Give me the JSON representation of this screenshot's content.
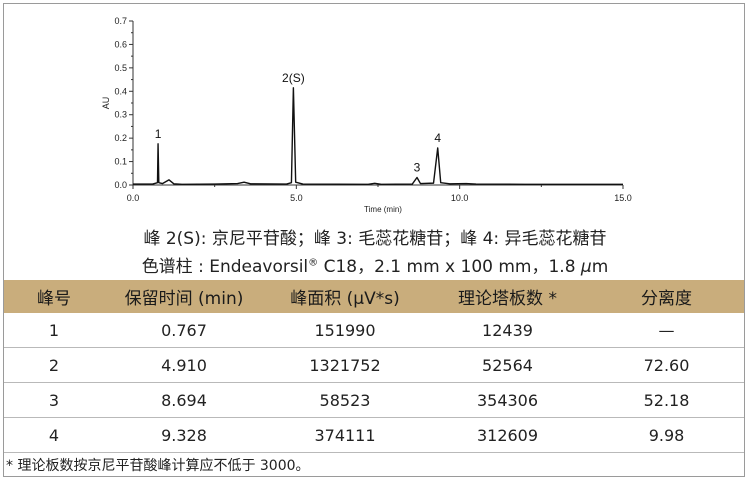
{
  "chart_data": {
    "type": "line",
    "ylabel": "AU",
    "xlabel": "Time (min)",
    "xlim": [
      0,
      15
    ],
    "ylim": [
      0,
      0.7
    ],
    "x_ticks": [
      "0.0",
      "5.0",
      "10.0",
      "15.0"
    ],
    "y_ticks": [
      "0.0",
      "0.1",
      "0.2",
      "0.3",
      "0.4",
      "0.5",
      "0.6",
      "0.7"
    ],
    "series": [
      {
        "values": [
          {
            "x": 0.0,
            "y": 0.004
          },
          {
            "x": 0.6,
            "y": 0.004
          },
          {
            "x": 0.75,
            "y": 0.01
          },
          {
            "x": 0.767,
            "y": 0.176
          },
          {
            "x": 0.79,
            "y": 0.01
          },
          {
            "x": 0.9,
            "y": 0.006
          },
          {
            "x": 1.1,
            "y": 0.022
          },
          {
            "x": 1.25,
            "y": 0.005
          },
          {
            "x": 1.5,
            "y": 0.003
          },
          {
            "x": 2.5,
            "y": 0.004
          },
          {
            "x": 3.2,
            "y": 0.006
          },
          {
            "x": 3.4,
            "y": 0.012
          },
          {
            "x": 3.6,
            "y": 0.005
          },
          {
            "x": 4.7,
            "y": 0.004
          },
          {
            "x": 4.85,
            "y": 0.01
          },
          {
            "x": 4.91,
            "y": 0.415
          },
          {
            "x": 4.98,
            "y": 0.012
          },
          {
            "x": 5.2,
            "y": 0.004
          },
          {
            "x": 7.2,
            "y": 0.003
          },
          {
            "x": 7.4,
            "y": 0.007
          },
          {
            "x": 7.6,
            "y": 0.003
          },
          {
            "x": 8.55,
            "y": 0.004
          },
          {
            "x": 8.694,
            "y": 0.032
          },
          {
            "x": 8.8,
            "y": 0.006
          },
          {
            "x": 9.2,
            "y": 0.008
          },
          {
            "x": 9.328,
            "y": 0.158
          },
          {
            "x": 9.42,
            "y": 0.01
          },
          {
            "x": 9.7,
            "y": 0.005
          },
          {
            "x": 10.2,
            "y": 0.006
          },
          {
            "x": 10.5,
            "y": 0.004
          },
          {
            "x": 12.0,
            "y": 0.003
          },
          {
            "x": 15.0,
            "y": 0.003
          }
        ]
      }
    ],
    "peak_labels": [
      {
        "label": "1",
        "x": 0.767,
        "y": 0.176
      },
      {
        "label": "2(S)",
        "x": 4.91,
        "y": 0.415
      },
      {
        "label": "3",
        "x": 8.694,
        "y": 0.032
      },
      {
        "label": "4",
        "x": 9.328,
        "y": 0.158
      }
    ]
  },
  "caption": {
    "line1": "峰 2(S): 京尼平苷酸；峰 3: 毛蕊花糖苷；峰 4: 异毛蕊花糖苷",
    "line2_prefix": "色谱柱 : Endeavorsil",
    "line2_sup": "®",
    "line2_mid": " C18，2.1 mm x 100 mm，1.8 ",
    "line2_mu": "μ",
    "line2_unit": "m"
  },
  "table": {
    "headers": [
      "峰号",
      "保留时间 (min)",
      "峰面积 (μV*s)",
      "理论塔板数 *",
      "分离度"
    ],
    "rows": [
      [
        "1",
        "0.767",
        "151990",
        "12439",
        "—"
      ],
      [
        "2",
        "4.910",
        "1321752",
        "52564",
        "72.60"
      ],
      [
        "3",
        "8.694",
        "58523",
        "354306",
        "52.18"
      ],
      [
        "4",
        "9.328",
        "374111",
        "312609",
        "9.98"
      ]
    ]
  },
  "footnote": "* 理论板数按京尼平苷酸峰计算应不低于 3000。",
  "colors": {
    "header_bg": "#c9ad7c",
    "trace": "#111111",
    "frame": "#9a9a9a"
  }
}
